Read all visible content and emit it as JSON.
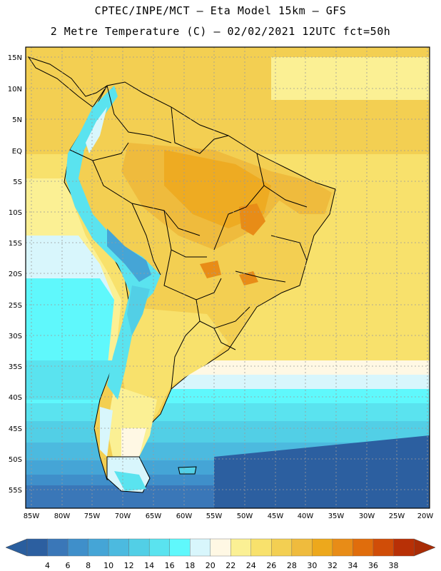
{
  "header": {
    "line1": "CPTEC/INPE/MCT –  Eta Model 15km – GFS",
    "line2": "2 Metre Temperature (C) – 02/02/2021 12UTC fct=50h"
  },
  "map": {
    "lat_labels": [
      "15N",
      "10N",
      "5N",
      "EQ",
      "5S",
      "10S",
      "15S",
      "20S",
      "25S",
      "30S",
      "35S",
      "40S",
      "45S",
      "50S",
      "55S"
    ],
    "lon_labels": [
      "85W",
      "80W",
      "75W",
      "70W",
      "65W",
      "60W",
      "55W",
      "50W",
      "45W",
      "40W",
      "35W",
      "30W",
      "25W",
      "20W"
    ],
    "lat_range": [
      -58,
      17
    ],
    "lon_range": [
      -86,
      -19
    ]
  },
  "colorbar": {
    "ticks": [
      "4",
      "6",
      "8",
      "10",
      "12",
      "14",
      "16",
      "18",
      "20",
      "22",
      "24",
      "26",
      "28",
      "30",
      "32",
      "34",
      "36",
      "38"
    ],
    "colors": [
      "#2c5fa0",
      "#3a77b8",
      "#3f8fca",
      "#45a5d6",
      "#4cbadf",
      "#52cfe6",
      "#5ae3ef",
      "#5ff8fc",
      "#d8f6fc",
      "#fff8e4",
      "#fbf094",
      "#f8e16c",
      "#f3cf52",
      "#efbb3d",
      "#eda81c",
      "#e88c17",
      "#e06d0c",
      "#d04d08",
      "#b83006"
    ],
    "low_arrow_color": "#2a5e9e",
    "high_arrow_color": "#a92c06"
  }
}
